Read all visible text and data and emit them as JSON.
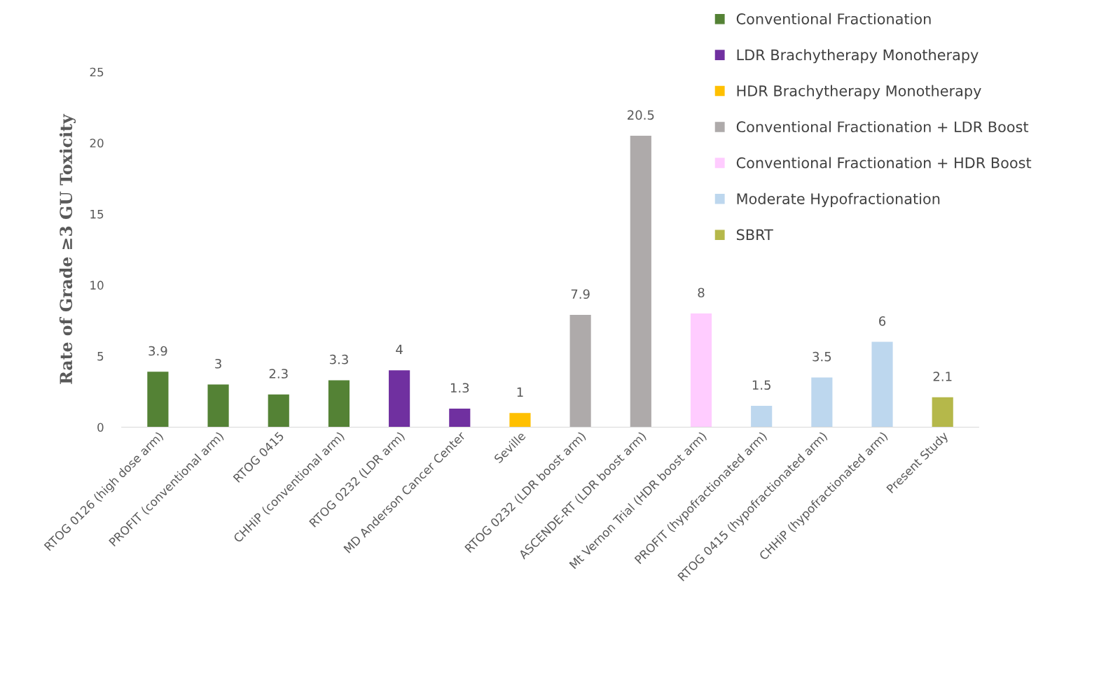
{
  "chart_data": {
    "type": "bar",
    "ylabel": "Rate of Grade ≥3 GU Toxicity",
    "categories": [
      "RTOG 0126 (high dose arm)",
      "PROFIT (conventional arm)",
      "RTOG 0415",
      "CHHiP (conventional arm)",
      "RTOG 0232 (LDR arm)",
      "MD Anderson Cancer Center",
      "Seville",
      "RTOG 0232 (LDR boost arm)",
      "ASCENDE-RT (LDR boost arm)",
      "Mt Vernon Trial (HDR boost arm)",
      "PROFIT (hypofractionated arm)",
      "RTOG 0415 (hypofractionated arm)",
      "CHHiP (hypofractionated arm)",
      "Present Study"
    ],
    "series": [
      {
        "name": "Conventional Fractionation",
        "color": "#548235",
        "values": [
          3.9,
          3,
          2.3,
          3.3,
          null,
          null,
          null,
          null,
          null,
          null,
          null,
          null,
          null,
          null
        ]
      },
      {
        "name": "LDR Brachytherapy Monotherapy",
        "color": "#7030a0",
        "values": [
          null,
          null,
          null,
          null,
          4,
          1.3,
          null,
          null,
          null,
          null,
          null,
          null,
          null,
          null
        ]
      },
      {
        "name": "HDR Brachytherapy Monotherapy",
        "color": "#ffc000",
        "values": [
          null,
          null,
          null,
          null,
          null,
          null,
          1,
          null,
          null,
          null,
          null,
          null,
          null,
          null
        ]
      },
      {
        "name": "Conventional Fractionation + LDR Boost",
        "color": "#aeaaaa",
        "values": [
          null,
          null,
          null,
          null,
          null,
          null,
          null,
          7.9,
          20.5,
          null,
          null,
          null,
          null,
          null
        ]
      },
      {
        "name": "Conventional Fractionation + HDR Boost",
        "color": "#ffccff",
        "values": [
          null,
          null,
          null,
          null,
          null,
          null,
          null,
          null,
          null,
          8,
          null,
          null,
          null,
          null
        ]
      },
      {
        "name": "Moderate Hypofractionation",
        "color": "#bdd7ee",
        "values": [
          null,
          null,
          null,
          null,
          null,
          null,
          null,
          null,
          null,
          null,
          1.5,
          3.5,
          6,
          null
        ]
      },
      {
        "name": "SBRT",
        "color": "#b5b84a",
        "values": [
          null,
          null,
          null,
          null,
          null,
          null,
          null,
          null,
          null,
          null,
          null,
          null,
          null,
          2.1
        ]
      }
    ],
    "ylim": [
      0,
      25
    ],
    "yticks": [
      0,
      5,
      10,
      15,
      20,
      25
    ],
    "data_labels": true,
    "grid": false,
    "legend": "top right"
  }
}
